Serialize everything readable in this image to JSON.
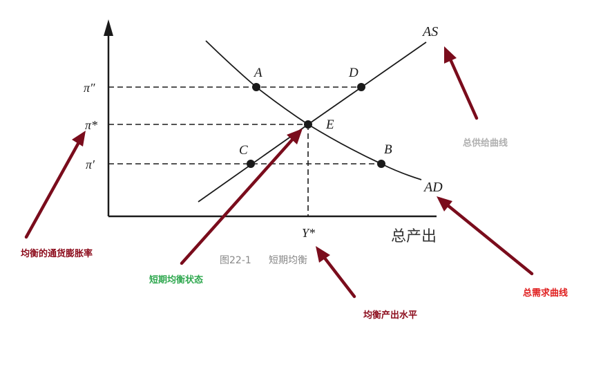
{
  "diagram": {
    "caption_number": "图22-1",
    "caption_title": "短期均衡",
    "axis_x_label": "总产出",
    "y_ticks": {
      "pi_double_prime": "π″",
      "pi_star": "π*",
      "pi_prime": "π′"
    },
    "x_tick": {
      "y_star": "Y*"
    },
    "curve_labels": {
      "as": "AS",
      "ad": "AD"
    },
    "points": {
      "a": "A",
      "b": "B",
      "c": "C",
      "d": "D",
      "e": "E"
    }
  },
  "annotations": {
    "inflation": {
      "text": "均衡的通货膨胀率",
      "color": "#8b0a1a"
    },
    "short_run": {
      "text": "短期均衡状态",
      "color": "#2fa84f"
    },
    "output": {
      "text": "均衡产出水平",
      "color": "#8b0a1a"
    },
    "supply": {
      "text": "总供给曲线",
      "color": "#b0b0b0"
    },
    "demand": {
      "text": "总需求曲线",
      "color": "#e02020"
    }
  },
  "colors": {
    "arrow": "#7a0c1c",
    "ink": "#1a1a1a"
  }
}
